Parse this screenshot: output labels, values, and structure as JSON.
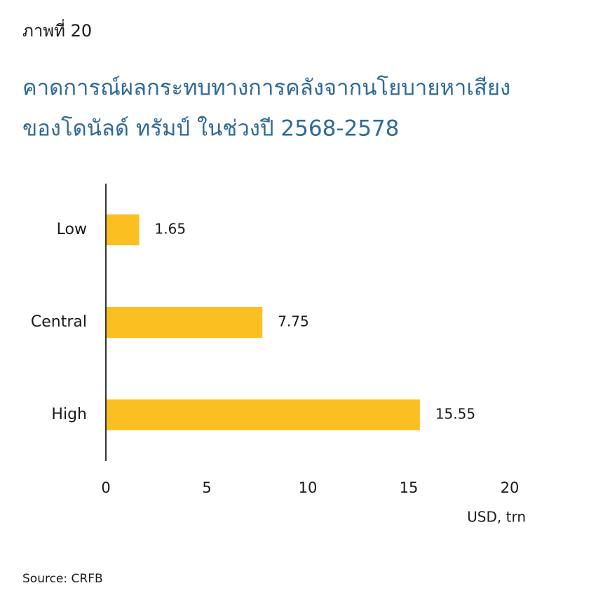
{
  "chart_data": {
    "type": "bar",
    "orientation": "horizontal",
    "figure_label": "ภาพที่ 20",
    "title": [
      "คาดการณ์ผลกระทบทางการคลังจากนโยบายหาเสียง",
      "ของโดนัลด์ ทรัมป์ ในช่วงปี 2568-2578"
    ],
    "categories": [
      "Low",
      "Central",
      "High"
    ],
    "values": [
      1.65,
      7.75,
      15.55
    ],
    "color": "#fcbf22",
    "xlim": [
      0,
      20
    ],
    "xticks": [
      0,
      5,
      10,
      15,
      20
    ],
    "x_label": "USD, trn",
    "source": "Source: CRFB",
    "grid": false
  }
}
